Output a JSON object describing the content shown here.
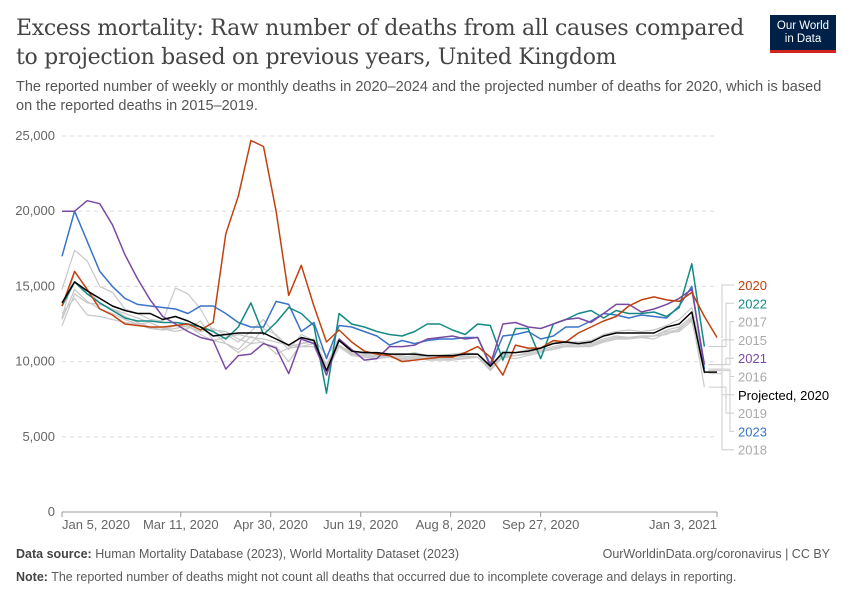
{
  "title": "Excess mortality: Raw number of deaths from all causes compared to projection based on previous years, United Kingdom",
  "subtitle": "The reported number of weekly or monthly deaths in 2020–2024 and the projected number of deaths for 2020, which is based on the reported deaths in 2015–2019.",
  "logo": {
    "line1": "Our World",
    "line2": "in Data",
    "bg": "#002147",
    "accent": "#ce261e"
  },
  "footer": {
    "source_label": "Data source:",
    "source": "Human Mortality Database (2023), World Mortality Dataset (2023)",
    "url": "OurWorldinData.org/coronavirus | CC BY",
    "note_label": "Note:",
    "note": "The reported number of deaths might not count all deaths that occurred due to incomplete coverage and delays in reporting."
  },
  "chart_data": {
    "type": "line",
    "ylim": [
      0,
      25000
    ],
    "yticks": [
      0,
      5000,
      10000,
      15000,
      20000,
      25000
    ],
    "ytick_labels": [
      "0",
      "5,000",
      "10,000",
      "15,000",
      "20,000",
      "25,000"
    ],
    "x_start": "2020-01-05",
    "x_step_days": 7,
    "xticks": [
      {
        "date": "2020-01-05",
        "label": "Jan 5, 2020"
      },
      {
        "date": "2020-03-11",
        "label": "Mar 11, 2020"
      },
      {
        "date": "2020-04-30",
        "label": "Apr 30, 2020"
      },
      {
        "date": "2020-06-19",
        "label": "Jun 19, 2020"
      },
      {
        "date": "2020-08-08",
        "label": "Aug 8, 2020"
      },
      {
        "date": "2020-09-27",
        "label": "Sep 27, 2020"
      },
      {
        "date": "2021-01-03",
        "label": "Jan 3, 2021"
      }
    ],
    "grid": "horizontal dashed",
    "legend": "right, labels at line ends",
    "series": [
      {
        "name": "2015",
        "color": "#c8c8c8",
        "values": [
          12400,
          14500,
          13900,
          13800,
          13500,
          13200,
          12900,
          12600,
          12200,
          12400,
          12500,
          12300,
          12100,
          12000,
          11500,
          11200,
          12200,
          11800,
          11000,
          11200,
          11500,
          10400,
          11500,
          10500,
          10400,
          10300,
          10300,
          10200,
          10300,
          10100,
          10100,
          10200,
          10200,
          10300,
          9500,
          10300,
          10400,
          10500,
          10700,
          10800,
          11000,
          11000,
          11100,
          11300,
          11500,
          11500,
          11600,
          11700,
          11800,
          12200,
          12800,
          9500,
          null
        ]
      },
      {
        "name": "2016",
        "color": "#c8c8c8",
        "values": [
          13200,
          14200,
          13100,
          13000,
          12800,
          12600,
          12500,
          12600,
          12200,
          12000,
          12200,
          12700,
          11400,
          11600,
          11800,
          11600,
          11500,
          11300,
          11100,
          11000,
          11200,
          9800,
          11100,
          10600,
          10500,
          10400,
          10500,
          10300,
          10400,
          10300,
          10200,
          10300,
          10400,
          10300,
          9600,
          10500,
          10400,
          10600,
          10800,
          11000,
          11200,
          11100,
          11200,
          11500,
          11700,
          11600,
          11700,
          11700,
          12000,
          12100,
          12900,
          9400,
          null
        ]
      },
      {
        "name": "2017",
        "color": "#c8c8c8",
        "values": [
          12900,
          16000,
          14800,
          13900,
          13500,
          13000,
          12600,
          12300,
          12100,
          12400,
          12300,
          12000,
          12200,
          11800,
          11300,
          12000,
          12800,
          11700,
          10800,
          11800,
          11400,
          9800,
          11500,
          10700,
          10600,
          10500,
          10500,
          10400,
          10600,
          10400,
          10400,
          10500,
          10600,
          10500,
          9600,
          10700,
          10600,
          10800,
          10900,
          11300,
          11300,
          11300,
          11400,
          11800,
          12000,
          12100,
          12000,
          12100,
          12400,
          12800,
          13600,
          9800,
          null
        ]
      },
      {
        "name": "2018",
        "color": "#c8c8c8",
        "values": [
          14800,
          17400,
          16700,
          15000,
          14600,
          13500,
          13200,
          12800,
          12700,
          14900,
          14500,
          13500,
          12000,
          11200,
          10600,
          11200,
          11300,
          10500,
          10900,
          11000,
          11000,
          9300,
          11000,
          10400,
          10300,
          10200,
          10300,
          10100,
          10200,
          10200,
          10100,
          10100,
          10200,
          10300,
          9400,
          10300,
          10200,
          10400,
          10600,
          10900,
          11000,
          11000,
          11000,
          11300,
          11500,
          11600,
          11600,
          11500,
          11900,
          12000,
          12700,
          9200,
          null
        ]
      },
      {
        "name": "2019",
        "color": "#c8c8c8",
        "values": [
          12800,
          14800,
          14000,
          13500,
          13200,
          12800,
          12500,
          12200,
          12100,
          12200,
          12400,
          11800,
          11400,
          11200,
          10800,
          11700,
          11200,
          11000,
          10000,
          11200,
          11300,
          9700,
          11100,
          10500,
          10400,
          10300,
          10400,
          10200,
          10300,
          10200,
          10200,
          10300,
          10300,
          10300,
          9500,
          10400,
          10400,
          10500,
          10700,
          10900,
          11100,
          11000,
          11100,
          11400,
          11600,
          11600,
          11700,
          11700,
          12100,
          12300,
          13000,
          8300,
          null
        ]
      },
      {
        "name": "2023",
        "color": "#3a73c8",
        "values": [
          17000,
          20000,
          18000,
          16000,
          15000,
          14200,
          13800,
          13700,
          13600,
          13500,
          13200,
          13700,
          13700,
          13200,
          12600,
          12300,
          12300,
          14000,
          13800,
          12000,
          12600,
          10200,
          12400,
          12300,
          12000,
          11700,
          11100,
          11400,
          11200,
          11400,
          11500,
          11500,
          11600,
          11600,
          9700,
          11700,
          11800,
          12000,
          11500,
          11700,
          12300,
          12300,
          12700,
          13200,
          13100,
          12900,
          13100,
          13000,
          12900,
          13700,
          15000,
          9500,
          null
        ]
      },
      {
        "name": "2022",
        "color": "#138a84",
        "values": [
          13700,
          15300,
          14500,
          13900,
          13400,
          12900,
          12700,
          12700,
          12600,
          12600,
          12500,
          12300,
          12000,
          11500,
          12300,
          13900,
          11800,
          12600,
          13600,
          13200,
          12400,
          7900,
          13200,
          12500,
          12300,
          12000,
          11800,
          11700,
          12000,
          12500,
          12500,
          12100,
          11800,
          12500,
          12400,
          10100,
          12200,
          12200,
          10200,
          12500,
          12800,
          13200,
          13400,
          12900,
          13400,
          13200,
          13200,
          13300,
          13000,
          13600,
          16500,
          11000,
          null
        ]
      },
      {
        "name": "2021",
        "color": "#7a4aa3",
        "values": [
          20000,
          20000,
          20700,
          20500,
          19100,
          17100,
          15500,
          14100,
          13000,
          12500,
          12000,
          11600,
          11400,
          9500,
          10400,
          10500,
          11200,
          10900,
          9200,
          11500,
          11200,
          9100,
          11500,
          10800,
          10100,
          10200,
          11000,
          11000,
          11100,
          11500,
          11600,
          11700,
          11500,
          11600,
          9800,
          12500,
          12600,
          12300,
          12200,
          12500,
          12800,
          12900,
          12600,
          13200,
          13800,
          13800,
          13300,
          13500,
          13800,
          14200,
          14800,
          9800,
          null
        ]
      },
      {
        "name": "2020",
        "color": "#c0410f",
        "values": [
          13700,
          16000,
          14800,
          13500,
          13100,
          12500,
          12400,
          12300,
          12300,
          12400,
          12500,
          12100,
          12600,
          18500,
          21000,
          24700,
          24300,
          20000,
          14400,
          16400,
          13700,
          11300,
          12100,
          11300,
          10700,
          10500,
          10400,
          10000,
          10100,
          10200,
          10300,
          10300,
          10600,
          11000,
          10300,
          9100,
          11100,
          10900,
          10900,
          11400,
          11300,
          11900,
          12300,
          12700,
          13000,
          13700,
          14100,
          14300,
          14100,
          14000,
          14600,
          13000,
          11600
        ]
      },
      {
        "name": "Projected, 2020",
        "color": "#000000",
        "values": [
          13900,
          15300,
          14700,
          14200,
          13700,
          13400,
          13200,
          13200,
          12800,
          13000,
          12700,
          12300,
          11700,
          11800,
          11900,
          11900,
          11900,
          11500,
          11100,
          11600,
          11400,
          9400,
          11400,
          10700,
          10600,
          10600,
          10500,
          10500,
          10500,
          10400,
          10400,
          10400,
          10500,
          10500,
          9700,
          10600,
          10600,
          10700,
          10900,
          11200,
          11300,
          11200,
          11300,
          11700,
          11900,
          11900,
          11900,
          11900,
          12300,
          12500,
          13300,
          9300,
          9300
        ]
      }
    ],
    "legend_order": [
      "2020",
      "2022",
      "2017",
      "2015",
      "2021",
      "2016",
      "Projected, 2020",
      "2019",
      "2023",
      "2018"
    ]
  }
}
